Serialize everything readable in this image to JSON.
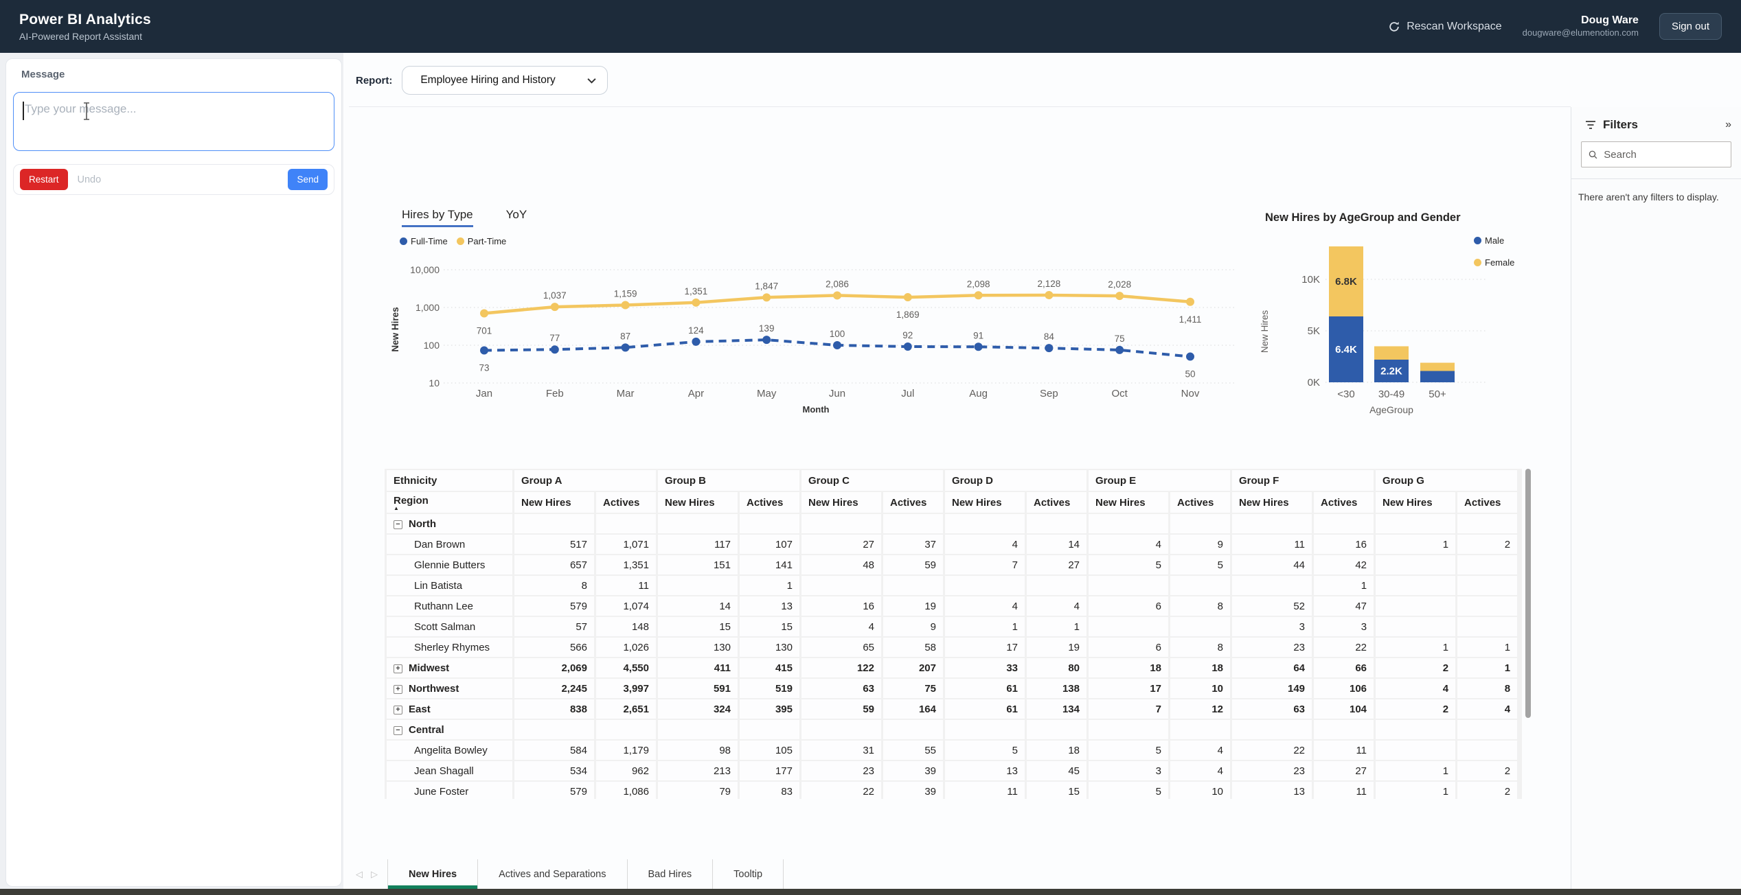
{
  "navbar": {
    "title": "Power BI Analytics",
    "subtitle": "AI-Powered Report Assistant",
    "rescan_label": "Rescan Workspace",
    "user_name": "Doug Ware",
    "user_email": "dougware@elumenotion.com",
    "signout_label": "Sign out"
  },
  "chat_panel": {
    "message_label": "Message",
    "input_placeholder": "Type your message...",
    "restart_label": "Restart",
    "undo_label": "Undo",
    "send_label": "Send"
  },
  "report_bar": {
    "label": "Report:",
    "selected_report": "Employee Hiring and History"
  },
  "filters_panel": {
    "title": "Filters",
    "search_placeholder": "Search",
    "empty_message": "There aren't any filters to display."
  },
  "page_tabs": {
    "tabs": [
      "New Hires",
      "Actives and Separations",
      "Bad Hires",
      "Tooltip"
    ],
    "active": "New Hires"
  },
  "colors": {
    "series_blue": "#2e5caa",
    "series_yellow": "#f3c65f",
    "chart_tab_underline": "#4472c4",
    "page_tab_underline": "#12805c",
    "restart_red": "#dc2626",
    "send_blue": "#3f83f8"
  },
  "chart_data": [
    {
      "id": "hires-by-type",
      "type": "line",
      "tabs": [
        "Hires by Type",
        "YoY"
      ],
      "active_tab": "Hires by Type",
      "x": [
        "Jan",
        "Feb",
        "Mar",
        "Apr",
        "May",
        "Jun",
        "Jul",
        "Aug",
        "Sep",
        "Oct",
        "Nov"
      ],
      "xlabel": "Month",
      "ylabel": "New Hires",
      "y_scale": "log",
      "y_tick_values": [
        10000,
        1000,
        100,
        10
      ],
      "y_ticks": [
        "10,000",
        "1,000",
        "100",
        "10"
      ],
      "grid": true,
      "legend_position": "top-left",
      "series": [
        {
          "name": "Full-Time",
          "color": "#2e5caa",
          "style": "dashed",
          "values": [
            73,
            77,
            87,
            124,
            139,
            100,
            92,
            91,
            84,
            75,
            50
          ],
          "labels": [
            "73",
            "77",
            "87",
            "124",
            "139",
            "100",
            "92",
            "91",
            "84",
            "75",
            "50"
          ],
          "label_position": [
            "below",
            "above",
            "above",
            "above",
            "above",
            "above",
            "above",
            "above",
            "above",
            "above",
            "below"
          ]
        },
        {
          "name": "Part-Time",
          "color": "#f3c65f",
          "style": "solid",
          "values": [
            701,
            1037,
            1159,
            1351,
            1847,
            2086,
            1869,
            2098,
            2128,
            2028,
            1411
          ],
          "labels": [
            "701",
            "1,037",
            "1,159",
            "1,351",
            "1,847",
            "2,086",
            "1,869",
            "2,098",
            "2,128",
            "2,028",
            "1,411"
          ],
          "label_position": [
            "below",
            "above",
            "above",
            "above",
            "above",
            "above",
            "below",
            "above",
            "above",
            "above",
            "below"
          ]
        }
      ]
    },
    {
      "id": "newhires-by-agegroup-gender",
      "type": "bar",
      "title": "New Hires by AgeGroup and Gender",
      "categories": [
        "<30",
        "30-49",
        "50+"
      ],
      "xlabel": "AgeGroup",
      "ylabel": "New Hires",
      "ylim": [
        0,
        13500
      ],
      "y_tick_values": [
        0,
        5000,
        10000
      ],
      "y_ticks": [
        "0K",
        "5K",
        "10K"
      ],
      "grid": true,
      "stacked": true,
      "legend_position": "top-right",
      "series": [
        {
          "name": "Male",
          "color": "#2e5caa",
          "values": [
            6400,
            2200,
            1100
          ],
          "labels": [
            "6.4K",
            "2.2K",
            ""
          ]
        },
        {
          "name": "Female",
          "color": "#f3c65f",
          "values": [
            6800,
            1300,
            800
          ],
          "labels": [
            "6.8K",
            "",
            ""
          ]
        }
      ]
    },
    {
      "id": "ethnicity-matrix",
      "type": "table",
      "corner_header": "Ethnicity",
      "row_header": "Region",
      "header_groups": [
        "Group A",
        "Group B",
        "Group C",
        "Group D",
        "Group E",
        "Group F",
        "Group G"
      ],
      "sub_headers": [
        "New Hires",
        "Actives"
      ],
      "rows": [
        {
          "label": "North",
          "level": 0,
          "icon": "minus",
          "bold": true,
          "values": [
            "",
            "",
            "",
            "",
            "",
            "",
            "",
            "",
            "",
            "",
            "",
            "",
            "",
            ""
          ]
        },
        {
          "label": "Dan Brown",
          "level": 1,
          "icon": null,
          "bold": false,
          "values": [
            "517",
            "1,071",
            "117",
            "107",
            "27",
            "37",
            "4",
            "14",
            "4",
            "9",
            "11",
            "16",
            "1",
            "2"
          ]
        },
        {
          "label": "Glennie Butters",
          "level": 1,
          "icon": null,
          "bold": false,
          "values": [
            "657",
            "1,351",
            "151",
            "141",
            "48",
            "59",
            "7",
            "27",
            "5",
            "5",
            "44",
            "42",
            "",
            ""
          ]
        },
        {
          "label": "Lin Batista",
          "level": 1,
          "icon": null,
          "bold": false,
          "values": [
            "8",
            "11",
            "",
            "1",
            "",
            "",
            "",
            "",
            "",
            "",
            "",
            "1",
            "",
            ""
          ]
        },
        {
          "label": "Ruthann Lee",
          "level": 1,
          "icon": null,
          "bold": false,
          "values": [
            "579",
            "1,074",
            "14",
            "13",
            "16",
            "19",
            "4",
            "4",
            "6",
            "8",
            "52",
            "47",
            "",
            ""
          ]
        },
        {
          "label": "Scott Salman",
          "level": 1,
          "icon": null,
          "bold": false,
          "values": [
            "57",
            "148",
            "15",
            "15",
            "4",
            "9",
            "1",
            "1",
            "",
            "",
            "3",
            "3",
            "",
            ""
          ]
        },
        {
          "label": "Sherley Rhymes",
          "level": 1,
          "icon": null,
          "bold": false,
          "values": [
            "566",
            "1,026",
            "130",
            "130",
            "65",
            "58",
            "17",
            "19",
            "6",
            "8",
            "23",
            "22",
            "1",
            "1"
          ]
        },
        {
          "label": "Midwest",
          "level": 0,
          "icon": "plus",
          "bold": true,
          "values": [
            "2,069",
            "4,550",
            "411",
            "415",
            "122",
            "207",
            "33",
            "80",
            "18",
            "18",
            "64",
            "66",
            "2",
            "1"
          ]
        },
        {
          "label": "Northwest",
          "level": 0,
          "icon": "plus",
          "bold": true,
          "values": [
            "2,245",
            "3,997",
            "591",
            "519",
            "63",
            "75",
            "61",
            "138",
            "17",
            "10",
            "149",
            "106",
            "4",
            "8"
          ]
        },
        {
          "label": "East",
          "level": 0,
          "icon": "plus",
          "bold": true,
          "values": [
            "838",
            "2,651",
            "324",
            "395",
            "59",
            "164",
            "61",
            "134",
            "7",
            "12",
            "63",
            "104",
            "2",
            "4"
          ]
        },
        {
          "label": "Central",
          "level": 0,
          "icon": "minus",
          "bold": true,
          "values": [
            "",
            "",
            "",
            "",
            "",
            "",
            "",
            "",
            "",
            "",
            "",
            "",
            "",
            ""
          ]
        },
        {
          "label": "Angelita Bowley",
          "level": 1,
          "icon": null,
          "bold": false,
          "values": [
            "584",
            "1,179",
            "98",
            "105",
            "31",
            "55",
            "5",
            "18",
            "5",
            "4",
            "22",
            "11",
            "",
            ""
          ]
        },
        {
          "label": "Jean Shagall",
          "level": 1,
          "icon": null,
          "bold": false,
          "values": [
            "534",
            "962",
            "213",
            "177",
            "23",
            "39",
            "13",
            "45",
            "3",
            "4",
            "23",
            "27",
            "1",
            "2"
          ]
        },
        {
          "label": "June Foster",
          "level": 1,
          "icon": null,
          "bold": false,
          "values": [
            "579",
            "1,086",
            "79",
            "83",
            "22",
            "39",
            "11",
            "15",
            "5",
            "10",
            "13",
            "11",
            "1",
            "2"
          ]
        }
      ]
    }
  ]
}
